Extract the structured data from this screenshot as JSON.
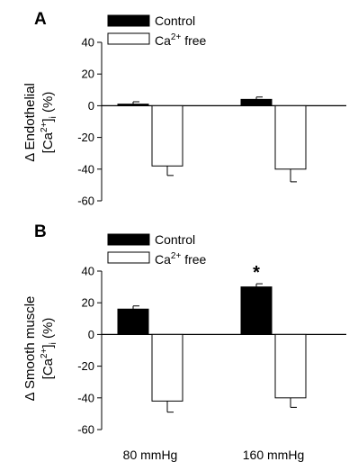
{
  "categories": [
    "80 mmHg",
    "160 mmHg"
  ],
  "chart_data": [
    {
      "type": "bar",
      "panel": "A",
      "ylabel_line1": "Δ Endothelial",
      "ylabel_line2": "[Ca2+]i (%)",
      "ylim": [
        -60,
        40
      ],
      "yticks": [
        40,
        20,
        0,
        -20,
        -40,
        -60
      ],
      "categories": [
        "80 mmHg",
        "160 mmHg"
      ],
      "series": [
        {
          "name": "Control",
          "color": "#000000",
          "values": [
            1,
            4
          ],
          "errors": [
            1.5,
            1.5
          ]
        },
        {
          "name": "Ca2+ free",
          "color": "#ffffff",
          "values": [
            -38,
            -40
          ],
          "errors": [
            6,
            8
          ]
        }
      ],
      "legend": [
        {
          "label": "Control",
          "sup": "",
          "after": "",
          "color": "#000000"
        },
        {
          "label": "Ca",
          "sup": "2+",
          "after": " free",
          "color": "#ffffff"
        }
      ],
      "annotations": []
    },
    {
      "type": "bar",
      "panel": "B",
      "ylabel_line1": "Δ Smooth muscle",
      "ylabel_line2": "[Ca2+]i (%)",
      "ylim": [
        -60,
        40
      ],
      "yticks": [
        40,
        20,
        0,
        -20,
        -40,
        -60
      ],
      "categories": [
        "80 mmHg",
        "160 mmHg"
      ],
      "series": [
        {
          "name": "Control",
          "color": "#000000",
          "values": [
            16,
            30
          ],
          "errors": [
            2,
            2
          ]
        },
        {
          "name": "Ca2+ free",
          "color": "#ffffff",
          "values": [
            -42,
            -40
          ],
          "errors": [
            7,
            6
          ]
        }
      ],
      "legend": [
        {
          "label": "Control",
          "sup": "",
          "after": "",
          "color": "#000000"
        },
        {
          "label": "Ca",
          "sup": "2+",
          "after": " free",
          "color": "#ffffff"
        }
      ],
      "annotations": [
        {
          "text": "*",
          "category_index": 1,
          "series_index": 0
        }
      ]
    }
  ]
}
